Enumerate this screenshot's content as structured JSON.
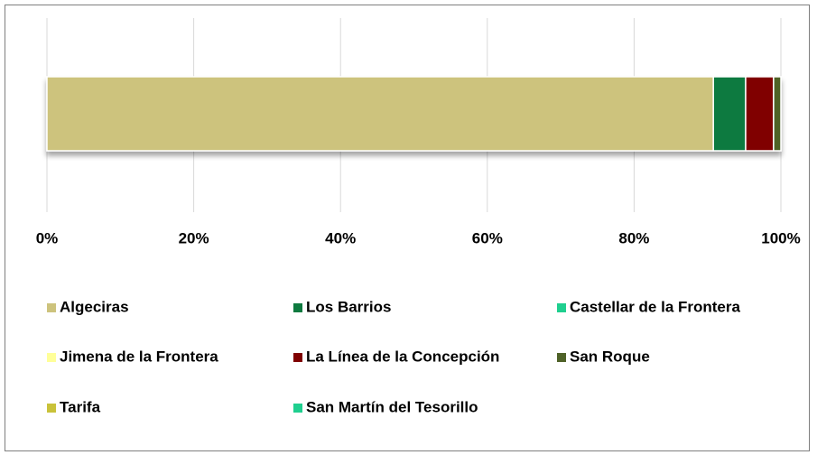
{
  "chart_data": {
    "type": "stacked_bar_horizontal",
    "categories": [
      ""
    ],
    "series": [
      {
        "name": "Algeciras",
        "color": "#cdc37d",
        "values": [
          90.8
        ]
      },
      {
        "name": "Los Barrios",
        "color": "#0e7a3f",
        "values": [
          4.4
        ]
      },
      {
        "name": "Castellar de la Frontera",
        "color": "#1fcf8f",
        "values": [
          0
        ]
      },
      {
        "name": "Jimena de la Frontera",
        "color": "#ffff99",
        "values": [
          0
        ]
      },
      {
        "name": "La Línea de la Concepción",
        "color": "#800000",
        "values": [
          3.8
        ]
      },
      {
        "name": "San Roque",
        "color": "#4f6228",
        "values": [
          1.0
        ]
      },
      {
        "name": "Tarifa",
        "color": "#c9c23a",
        "values": [
          0
        ]
      },
      {
        "name": "San Martín del Tesorillo",
        "color": "#1fcf8f",
        "values": [
          0
        ]
      }
    ],
    "xlim": [
      0,
      100
    ],
    "xticks": [
      {
        "value": 0,
        "label": "0%"
      },
      {
        "value": 20,
        "label": "20%"
      },
      {
        "value": 40,
        "label": "40%"
      },
      {
        "value": 60,
        "label": "60%"
      },
      {
        "value": 80,
        "label": "80%"
      },
      {
        "value": 100,
        "label": "100%"
      }
    ],
    "grid": true,
    "legend": "bottom"
  }
}
